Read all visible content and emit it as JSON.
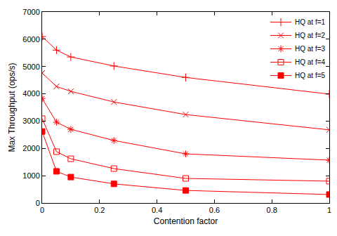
{
  "chart_data": {
    "type": "line",
    "x_label": "Contention factor",
    "y_label": "Max Throughput (ops/s)",
    "x": [
      0,
      0.05,
      0.1,
      0.25,
      0.5,
      1
    ],
    "series": [
      {
        "name": "HQ at f=1",
        "color": "#ff0000",
        "marker": "plus",
        "values": [
          6100,
          5600,
          5350,
          5020,
          4600,
          3990
        ]
      },
      {
        "name": "HQ at f=2",
        "color": "#ff0000",
        "marker": "x",
        "values": [
          4760,
          4270,
          4090,
          3700,
          3240,
          2680
        ]
      },
      {
        "name": "HQ at f=3",
        "color": "#ff0000",
        "marker": "asterisk",
        "values": [
          3830,
          2960,
          2700,
          2290,
          1800,
          1570
        ]
      },
      {
        "name": "HQ at f=4",
        "color": "#ff0000",
        "marker": "open-square",
        "values": [
          3090,
          1880,
          1620,
          1260,
          900,
          800
        ]
      },
      {
        "name": "HQ at f=5",
        "color": "#ff0000",
        "marker": "filled-square",
        "values": [
          2620,
          1160,
          950,
          700,
          460,
          310
        ]
      }
    ],
    "xlim": [
      0,
      1
    ],
    "xticks": [
      0,
      0.2,
      0.4,
      0.6,
      0.8,
      1
    ],
    "ylim": [
      0,
      7000
    ],
    "yticks": [
      0,
      1000,
      2000,
      3000,
      4000,
      5000,
      6000,
      7000
    ],
    "grid": false,
    "legend": "upper right"
  }
}
